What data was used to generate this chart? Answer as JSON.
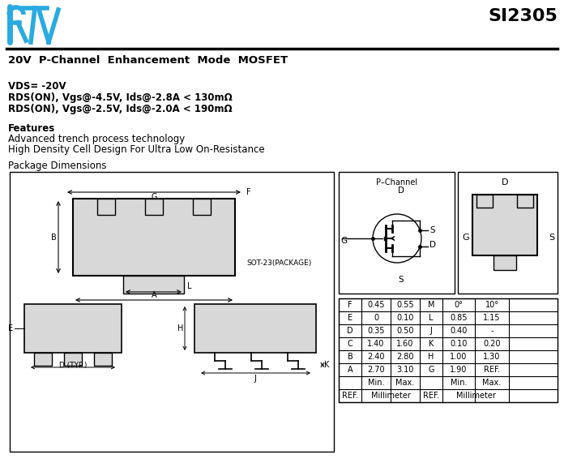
{
  "title_part": "SI2305",
  "subtitle": "20V  P-Channel  Enhancement  Mode  MOSFET",
  "spec1": "VDS= -20V",
  "spec2": "RDS(ON), Vgs@-4.5V, Ids@-2.8A < 130mΩ",
  "spec3": "RDS(ON), Vgs@-2.5V, Ids@-2.0A < 190mΩ",
  "features_title": "Features",
  "feat1": "Advanced trench process technology",
  "feat2": "High Density Cell Design For Ultra Low On-Resistance",
  "package_title": "Package Dimensions",
  "package_label": "SOT-23(PACKAGE)",
  "table_data": [
    [
      "A",
      "2.70",
      "3.10",
      "G",
      "1.90",
      "REF."
    ],
    [
      "B",
      "2.40",
      "2.80",
      "H",
      "1.00",
      "1.30"
    ],
    [
      "C",
      "1.40",
      "1.60",
      "K",
      "0.10",
      "0.20"
    ],
    [
      "D",
      "0.35",
      "0.50",
      "J",
      "0.40",
      "-"
    ],
    [
      "E",
      "0",
      "0.10",
      "L",
      "0.85",
      "1.15"
    ],
    [
      "F",
      "0.45",
      "0.55",
      "M",
      "0°",
      "10°"
    ]
  ],
  "bg_color": "#ffffff",
  "logo_color": "#29abe2"
}
